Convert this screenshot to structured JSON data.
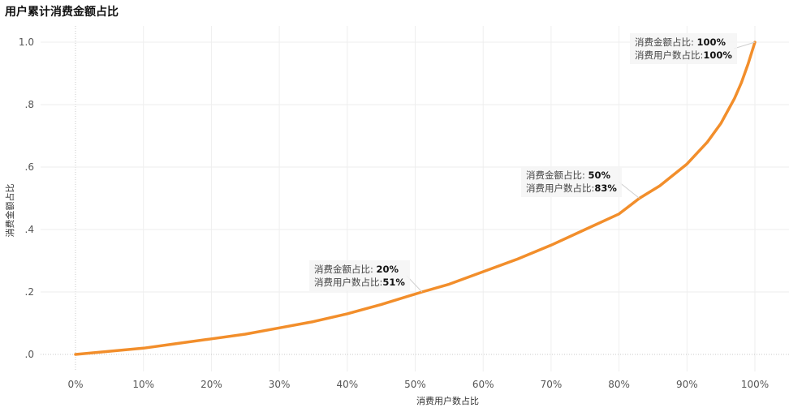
{
  "title": "用户累计消费金额占比",
  "chart_data": {
    "type": "line",
    "title": "用户累计消费金额占比",
    "xlabel": "消费用户数占比",
    "ylabel": "消费金额占比",
    "xlim": [
      0,
      1
    ],
    "ylim": [
      0,
      1
    ],
    "x_ticks": [
      "0%",
      "10%",
      "20%",
      "30%",
      "40%",
      "50%",
      "60%",
      "70%",
      "80%",
      "90%",
      "100%"
    ],
    "y_ticks": [
      ".0",
      ".2",
      ".4",
      ".6",
      ".8",
      "1.0"
    ],
    "grid": true,
    "series": [
      {
        "color": "#f28e2b",
        "x": [
          0,
          0.05,
          0.1,
          0.15,
          0.2,
          0.25,
          0.3,
          0.35,
          0.4,
          0.45,
          0.51,
          0.55,
          0.6,
          0.65,
          0.7,
          0.75,
          0.8,
          0.83,
          0.86,
          0.9,
          0.93,
          0.95,
          0.97,
          0.98,
          0.99,
          1.0
        ],
        "y": [
          0,
          0.01,
          0.02,
          0.035,
          0.05,
          0.065,
          0.085,
          0.105,
          0.13,
          0.16,
          0.2,
          0.225,
          0.265,
          0.305,
          0.35,
          0.4,
          0.45,
          0.5,
          0.54,
          0.61,
          0.68,
          0.74,
          0.82,
          0.87,
          0.93,
          1.0
        ]
      }
    ],
    "annotations": [
      {
        "amount_label": "消费金额占比:",
        "amount_value": "20%",
        "users_label": "消费用户数占比:",
        "users_value": "51%",
        "x": 0.51,
        "y": 0.2
      },
      {
        "amount_label": "消费金额占比:",
        "amount_value": "50%",
        "users_label": "消费用户数占比:",
        "users_value": "83%",
        "x": 0.83,
        "y": 0.5
      },
      {
        "amount_label": "消费金额占比:",
        "amount_value": "100%",
        "users_label": "消费用户数占比:",
        "users_value": "100%",
        "x": 1.0,
        "y": 1.0
      }
    ]
  }
}
